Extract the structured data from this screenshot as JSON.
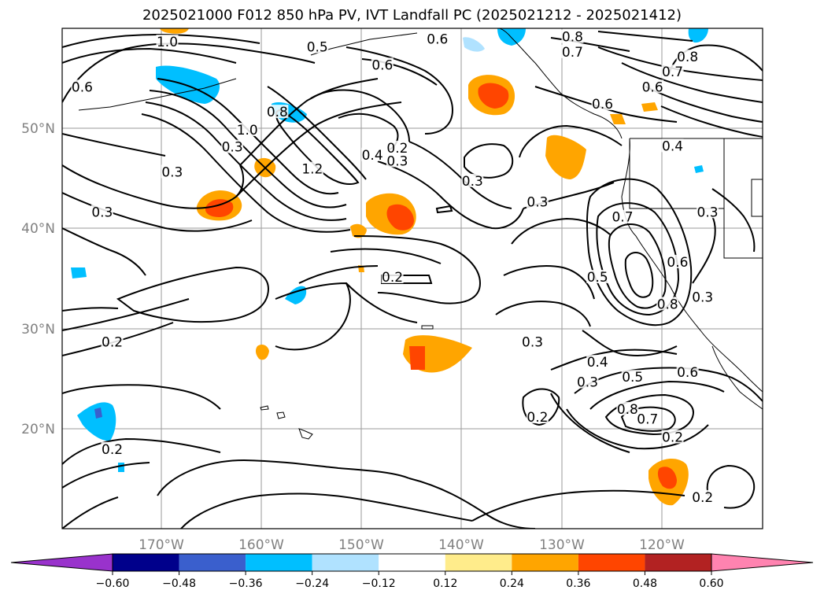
{
  "title": "2025021000 F012 850 hPa PV, IVT Landfall PC (2025021212 - 2025021412)",
  "lon_ticks": [
    "170°W",
    "160°W",
    "150°W",
    "140°W",
    "130°W",
    "120°W"
  ],
  "lat_ticks": [
    "20°N",
    "30°N",
    "40°N",
    "50°N"
  ],
  "colorbar": {
    "labels": [
      "−0.60",
      "−0.48",
      "−0.36",
      "−0.24",
      "−0.12",
      "0.12",
      "0.24",
      "0.36",
      "0.48",
      "0.60"
    ],
    "colors": [
      "#9932cc",
      "#00008b",
      "#3a5fcd",
      "#00bfff",
      "#b0e2ff",
      "#ffffff",
      "#ffec8b",
      "#ffa500",
      "#ff4500",
      "#b22222",
      "#ff83b0"
    ],
    "extend": "both"
  },
  "contour_labels": [
    {
      "text": "1.0",
      "lon": -169.5,
      "lat": 58.5
    },
    {
      "text": "0.6",
      "lon": -178,
      "lat": 54
    },
    {
      "text": "0.6",
      "lon": -142.5,
      "lat": 58.8
    },
    {
      "text": "0.5",
      "lon": -154.5,
      "lat": 58
    },
    {
      "text": "0.8",
      "lon": -129,
      "lat": 59
    },
    {
      "text": "0.7",
      "lon": -129,
      "lat": 57.5
    },
    {
      "text": "0.6",
      "lon": -148,
      "lat": 56.2
    },
    {
      "text": "0.8",
      "lon": -117.5,
      "lat": 57
    },
    {
      "text": "0.7",
      "lon": -119,
      "lat": 55.5
    },
    {
      "text": "0.6",
      "lon": -121,
      "lat": 54
    },
    {
      "text": "0.6",
      "lon": -126,
      "lat": 52.3
    },
    {
      "text": "0.8",
      "lon": -158.5,
      "lat": 51.5
    },
    {
      "text": "1.0",
      "lon": -161.5,
      "lat": 49.7
    },
    {
      "text": "0.3",
      "lon": -163,
      "lat": 48
    },
    {
      "text": "0.3",
      "lon": -169,
      "lat": 45.5
    },
    {
      "text": "0.3",
      "lon": -176,
      "lat": 41.5
    },
    {
      "text": "1.2",
      "lon": -155,
      "lat": 45.8
    },
    {
      "text": "0.4",
      "lon": -149,
      "lat": 47.2
    },
    {
      "text": "0.2",
      "lon": -146.5,
      "lat": 47.9
    },
    {
      "text": "0.3",
      "lon": -146.5,
      "lat": 46.6
    },
    {
      "text": "0.3",
      "lon": -139,
      "lat": 44.6
    },
    {
      "text": "0.3",
      "lon": -132.5,
      "lat": 42.5
    },
    {
      "text": "0.4",
      "lon": -119,
      "lat": 48.1
    },
    {
      "text": "0.7",
      "lon": -124,
      "lat": 41
    },
    {
      "text": "0.3",
      "lon": -115.5,
      "lat": 41.5
    },
    {
      "text": "0.6",
      "lon": -118.5,
      "lat": 36.5
    },
    {
      "text": "0.8",
      "lon": -119.5,
      "lat": 32.3
    },
    {
      "text": "0.3",
      "lon": -116,
      "lat": 33
    },
    {
      "text": "0.5",
      "lon": -126.5,
      "lat": 35
    },
    {
      "text": "0.2",
      "lon": -147,
      "lat": 35
    },
    {
      "text": "0.2",
      "lon": -175,
      "lat": 28.5
    },
    {
      "text": "0.3",
      "lon": -133,
      "lat": 28.5
    },
    {
      "text": "0.4",
      "lon": -126.5,
      "lat": 26.5
    },
    {
      "text": "0.5",
      "lon": -123,
      "lat": 25
    },
    {
      "text": "0.3",
      "lon": -127.5,
      "lat": 24.5
    },
    {
      "text": "0.6",
      "lon": -117.5,
      "lat": 25.5
    },
    {
      "text": "0.8",
      "lon": -123.5,
      "lat": 21.8
    },
    {
      "text": "0.7",
      "lon": -121.5,
      "lat": 20.8
    },
    {
      "text": "0.2",
      "lon": -132.5,
      "lat": 21
    },
    {
      "text": "0.2",
      "lon": -119,
      "lat": 19
    },
    {
      "text": "0.2",
      "lon": -175,
      "lat": 17.8
    },
    {
      "text": "0.2",
      "lon": -116,
      "lat": 13
    }
  ]
}
